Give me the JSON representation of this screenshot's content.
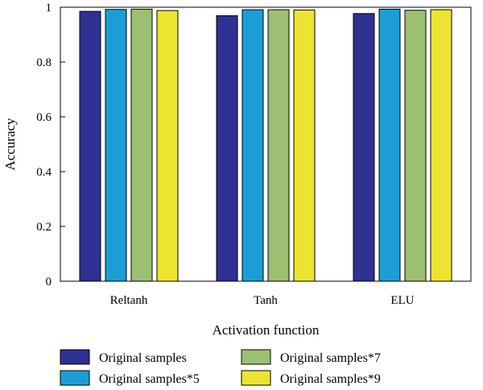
{
  "chart_data": {
    "type": "bar",
    "categories": [
      "Reltanh",
      "Tanh",
      "ELU"
    ],
    "series": [
      {
        "name": "Original samples",
        "values": [
          0.985,
          0.969,
          0.977
        ],
        "color": "#2e3192"
      },
      {
        "name": "Original samples*5",
        "values": [
          0.992,
          0.991,
          0.993
        ],
        "color": "#1b9ed6"
      },
      {
        "name": "Original samples*7",
        "values": [
          0.993,
          0.991,
          0.989
        ],
        "color": "#9cbf72"
      },
      {
        "name": "Original samples*9",
        "values": [
          0.988,
          0.99,
          0.991
        ],
        "color": "#ece430"
      }
    ],
    "xlabel": "Activation function",
    "ylabel": "Accuracy",
    "ylim": [
      0,
      1
    ],
    "yticks": [
      "0",
      "0.2",
      "0.4",
      "0.6",
      "0.8",
      "1"
    ],
    "grid": false,
    "legend_position": "bottom"
  }
}
